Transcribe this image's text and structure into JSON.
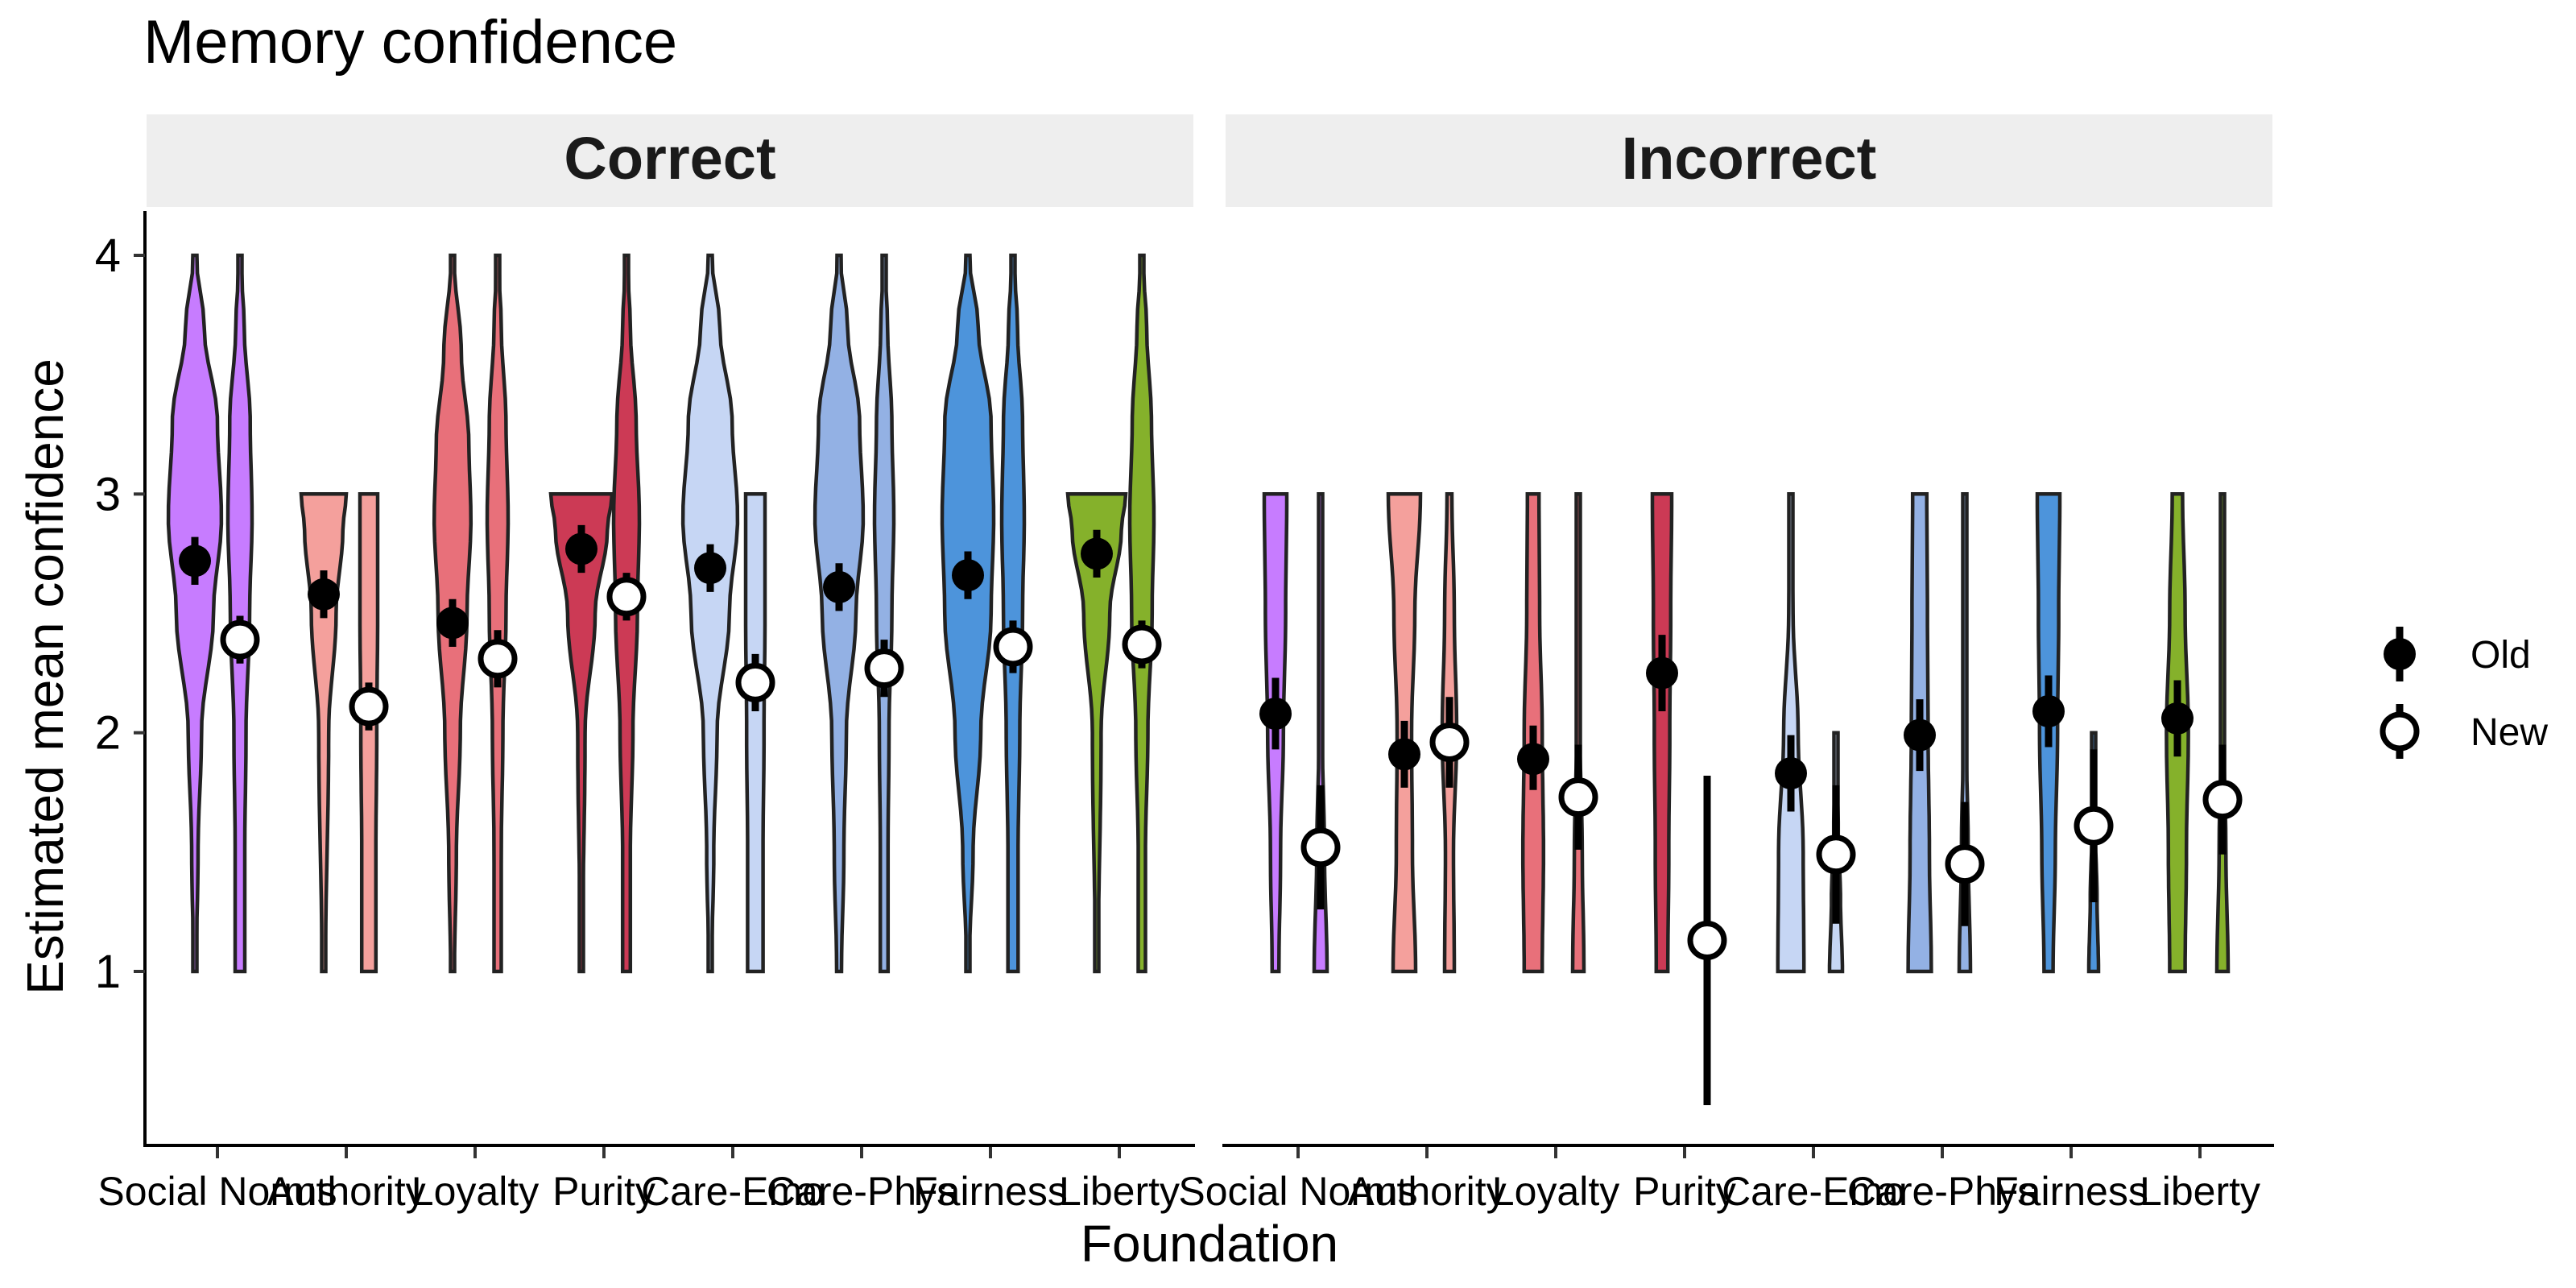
{
  "chart_data": {
    "type": "violin",
    "title": "Memory confidence",
    "xlabel": "Foundation",
    "ylabel": "Estimated mean confidence",
    "ylim": [
      0.3,
      4.15
    ],
    "yticks": [
      1,
      2,
      3,
      4
    ],
    "categories": [
      "Social Norms",
      "Authority",
      "Loyalty",
      "Purity",
      "Care-Emo",
      "Care-Phys",
      "Fairness",
      "Liberty"
    ],
    "category_colors": [
      "#c77cff",
      "#f4a09c",
      "#e8707a",
      "#cc3a55",
      "#c6d6f4",
      "#93b1e4",
      "#4d94db",
      "#85b12b"
    ],
    "legend": {
      "position": "right",
      "items": [
        {
          "label": "Old",
          "marker": "filled-circle"
        },
        {
          "label": "New",
          "marker": "open-circle"
        }
      ]
    },
    "panels": [
      {
        "label": "Correct",
        "series": [
          {
            "name": "Old",
            "values": [
              2.72,
              2.58,
              2.46,
              2.77,
              2.69,
              2.61,
              2.66,
              2.75
            ],
            "ci_low": [
              2.62,
              2.48,
              2.36,
              2.67,
              2.59,
              2.51,
              2.56,
              2.65
            ],
            "ci_high": [
              2.82,
              2.68,
              2.56,
              2.87,
              2.79,
              2.71,
              2.76,
              2.85
            ]
          },
          {
            "name": "New",
            "values": [
              2.39,
              2.11,
              2.31,
              2.57,
              2.21,
              2.27,
              2.36,
              2.37
            ],
            "ci_low": [
              2.29,
              2.01,
              2.19,
              2.47,
              2.09,
              2.15,
              2.25,
              2.27
            ],
            "ci_high": [
              2.49,
              2.21,
              2.43,
              2.67,
              2.33,
              2.39,
              2.47,
              2.47
            ]
          }
        ]
      },
      {
        "label": "Incorrect",
        "series": [
          {
            "name": "Old",
            "values": [
              2.08,
              1.91,
              1.89,
              2.25,
              1.83,
              1.99,
              2.09,
              2.06
            ],
            "ci_low": [
              1.93,
              1.77,
              1.76,
              2.09,
              1.67,
              1.84,
              1.94,
              1.9
            ],
            "ci_high": [
              2.23,
              2.05,
              2.03,
              2.41,
              1.99,
              2.14,
              2.24,
              2.22
            ]
          },
          {
            "name": "New",
            "values": [
              1.52,
              1.96,
              1.73,
              1.13,
              1.49,
              1.45,
              1.61,
              1.72
            ],
            "ci_low": [
              1.26,
              1.77,
              1.51,
              0.44,
              1.2,
              1.19,
              1.29,
              1.49
            ],
            "ci_high": [
              1.78,
              2.15,
              1.95,
              1.82,
              1.78,
              1.71,
              1.93,
              1.95
            ]
          }
        ]
      }
    ]
  }
}
